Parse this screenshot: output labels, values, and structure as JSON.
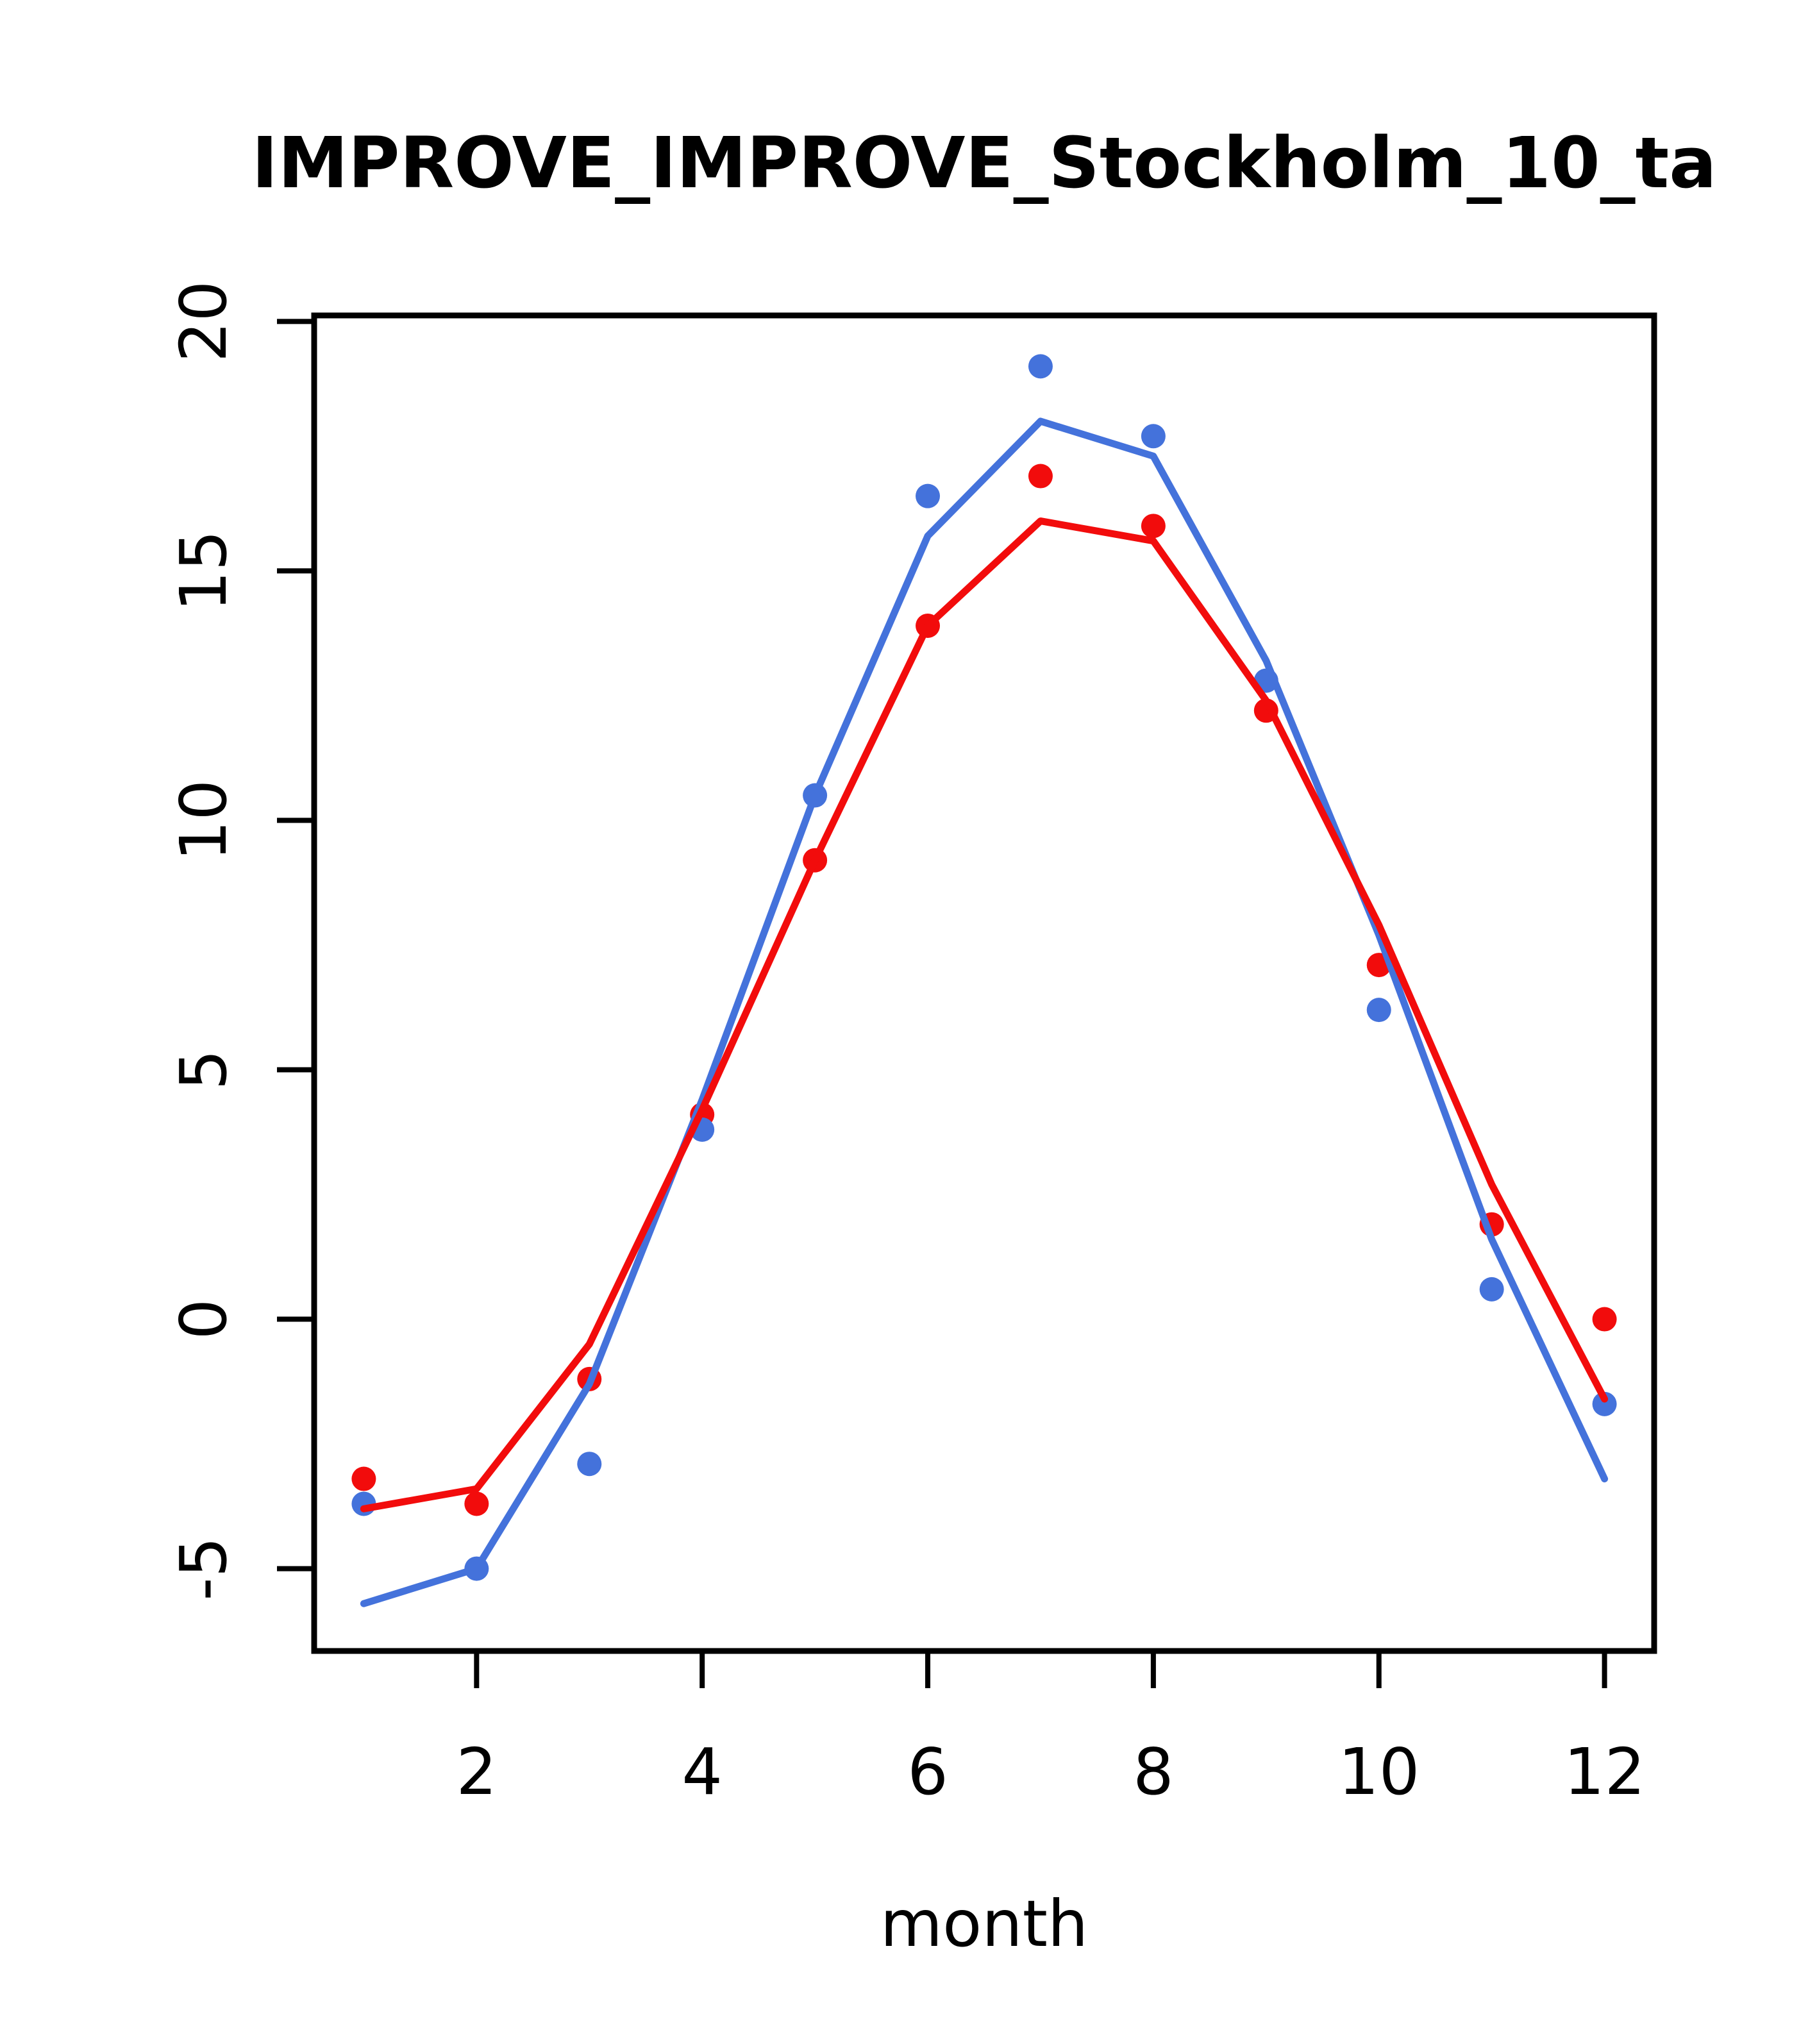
{
  "title": "IMPROVE_IMPROVE_Stockholm_10_ta",
  "chart_data": {
    "type": "line",
    "title": "IMPROVE_IMPROVE_Stockholm_10_ta",
    "xlabel": "month",
    "ylabel": "",
    "x": [
      1,
      2,
      3,
      4,
      5,
      6,
      7,
      8,
      9,
      10,
      11,
      12
    ],
    "xticks": [
      2,
      4,
      6,
      8,
      10,
      12
    ],
    "yticks": [
      -5,
      0,
      5,
      10,
      15,
      20
    ],
    "xlim": [
      0.56,
      12.44
    ],
    "ylim": [
      -6.65,
      20.12
    ],
    "grid": false,
    "legend": false,
    "background_color": "#ffffff",
    "axis_color": "#000000",
    "colors": {
      "red": "#f20c0c",
      "blue": "#4472db"
    },
    "series": [
      {
        "name": "red-points",
        "kind": "points",
        "color": "#f20c0c",
        "values": [
          -3.2,
          -3.7,
          -1.2,
          4.1,
          9.2,
          13.9,
          16.9,
          15.9,
          12.2,
          7.1,
          1.9,
          0.0
        ]
      },
      {
        "name": "blue-points",
        "kind": "points",
        "color": "#4472db",
        "values": [
          -3.7,
          -5.0,
          -2.9,
          3.8,
          10.5,
          16.5,
          19.1,
          17.7,
          12.8,
          6.2,
          0.6,
          -1.7
        ]
      },
      {
        "name": "blue-line",
        "kind": "line",
        "color": "#4472db",
        "values": [
          -5.7,
          -5.0,
          -1.3,
          4.4,
          10.5,
          15.7,
          18.0,
          17.3,
          13.2,
          7.7,
          1.6,
          -3.2
        ]
      },
      {
        "name": "red-line",
        "kind": "line",
        "color": "#f20c0c",
        "values": [
          -3.8,
          -3.4,
          -0.5,
          4.2,
          9.2,
          13.9,
          16.0,
          15.6,
          12.4,
          7.9,
          2.7,
          -1.6
        ]
      }
    ]
  }
}
